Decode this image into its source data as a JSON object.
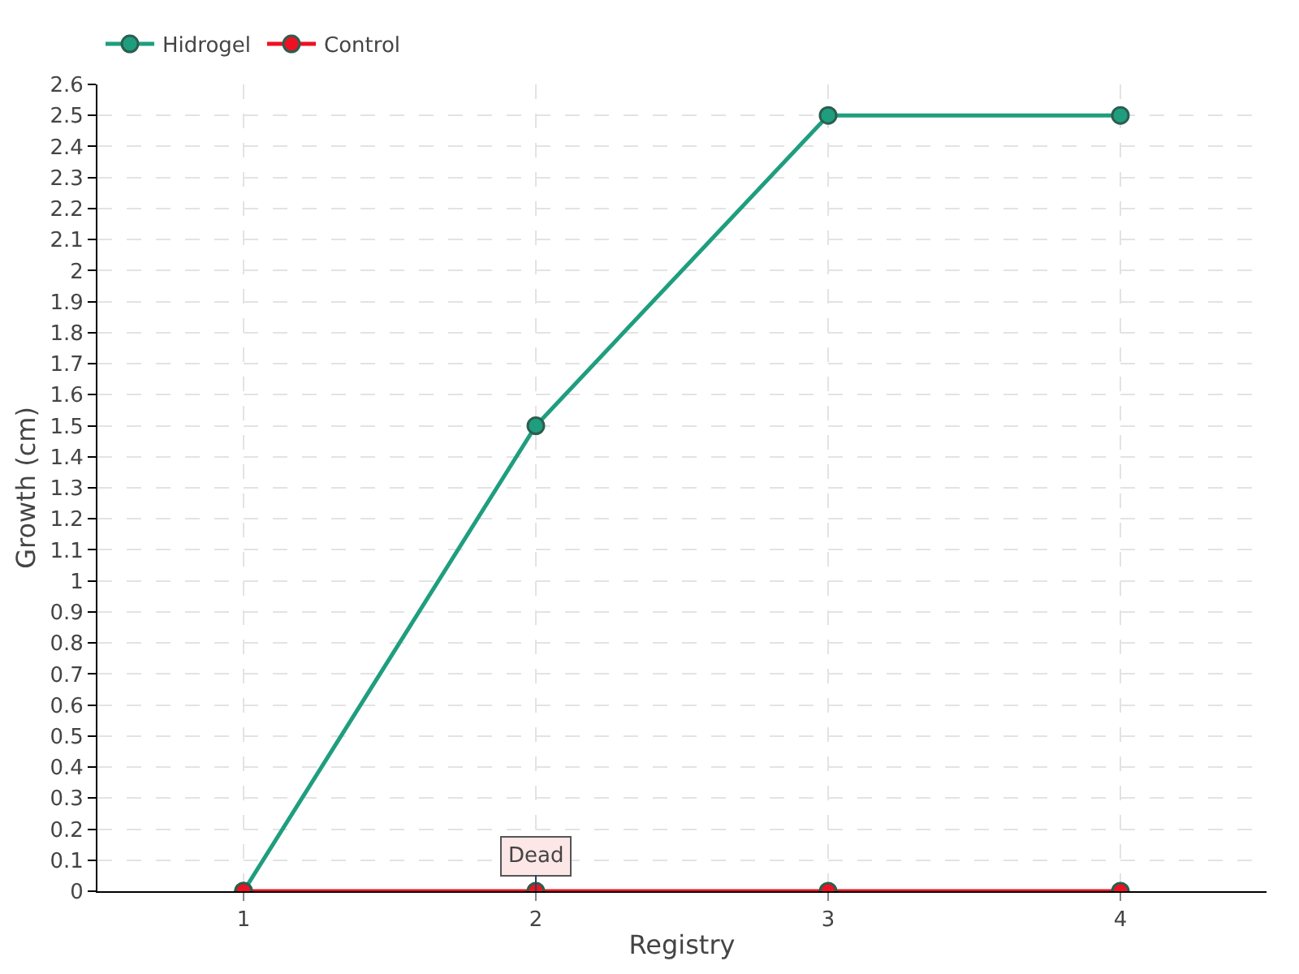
{
  "chart_data": {
    "type": "line",
    "xlabel": "Registry",
    "ylabel": "Growth (cm)",
    "x": [
      1,
      2,
      3,
      4
    ],
    "series": [
      {
        "name": "Hidrogel",
        "color": "#1f9e7f",
        "values": [
          0,
          1.5,
          2.5,
          2.5
        ]
      },
      {
        "name": "Control",
        "color": "#ee1122",
        "values": [
          0,
          0,
          0,
          0
        ]
      }
    ],
    "xlim": [
      0.5,
      4.5
    ],
    "xticks": [
      1,
      2,
      3,
      4
    ],
    "ylim": [
      0,
      2.6
    ],
    "yticks": [
      0,
      0.1,
      0.2,
      0.3,
      0.4,
      0.5,
      0.6,
      0.7,
      0.8,
      0.9,
      1,
      1.1,
      1.2,
      1.3,
      1.4,
      1.5,
      1.6,
      1.7,
      1.8,
      1.9,
      2,
      2.1,
      2.2,
      2.3,
      2.4,
      2.5,
      2.6
    ],
    "annotations": [
      {
        "text": "Dead",
        "x": 2,
        "y": 0
      }
    ],
    "grid": true,
    "legend": "top left",
    "marker": "circle",
    "line_style": "solid"
  }
}
